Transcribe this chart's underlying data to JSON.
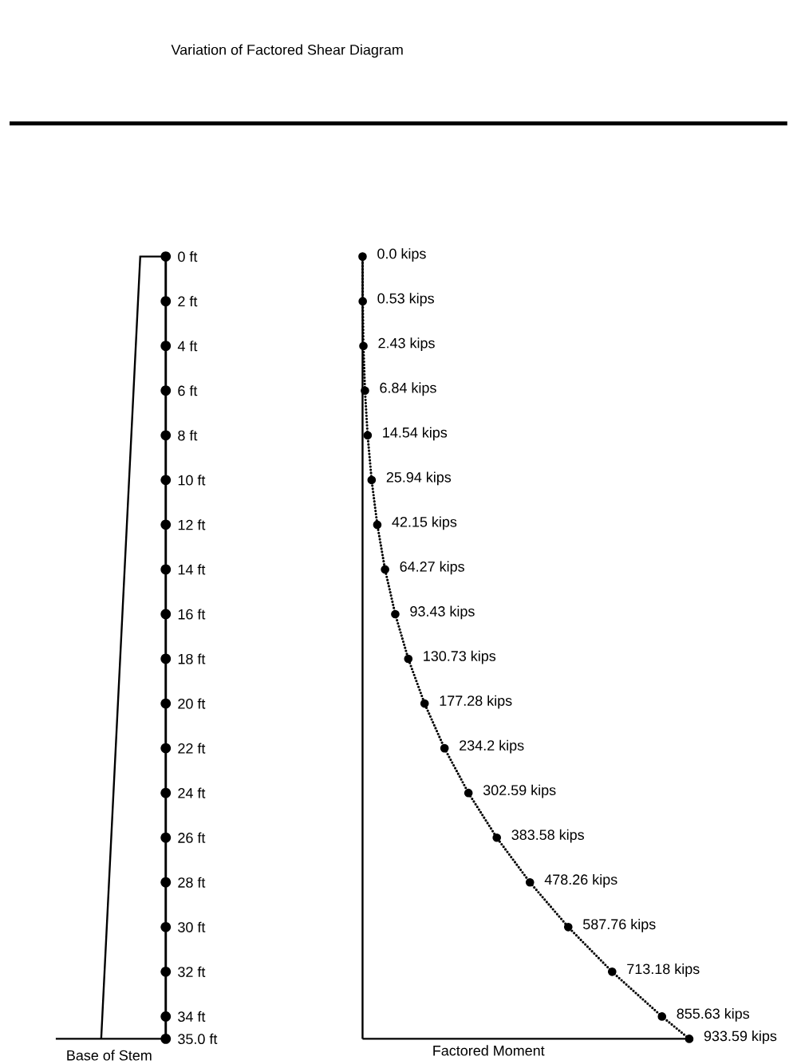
{
  "chart_data": {
    "type": "line",
    "title": "Variation of Factored Shear Diagram",
    "xlabel": "Factored Moment",
    "annotations": [
      "Base of Stem"
    ],
    "orientation": "horizontal",
    "color": "#000000",
    "marker": "circle",
    "line_style": "dotted",
    "tick_labels": "y",
    "x": [
      0,
      2,
      4,
      6,
      8,
      10,
      12,
      14,
      16,
      18,
      20,
      22,
      24,
      26,
      28,
      30,
      32,
      34,
      35
    ],
    "values": [
      0.0,
      0.53,
      2.43,
      6.84,
      14.54,
      25.94,
      42.15,
      64.27,
      93.43,
      130.73,
      177.28,
      234.2,
      302.59,
      383.58,
      478.26,
      587.76,
      713.18,
      855.63,
      933.59
    ],
    "value_labels": [
      "0.0 kips",
      "0.53 kips",
      "2.43 kips",
      "6.84 kips",
      "14.54 kips",
      "25.94 kips",
      "42.15 kips",
      "64.27 kips",
      "93.43 kips",
      "130.73 kips",
      "177.28 kips",
      "234.2 kips",
      "302.59 kips",
      "383.58 kips",
      "478.26 kips",
      "587.76 kips",
      "713.18 kips",
      "855.63 kips",
      "933.59 kips"
    ],
    "xlim": [
      0,
      933.59
    ],
    "ylim": [
      35,
      0
    ],
    "yticks": [
      {
        "value": 0,
        "label": "0 ft"
      },
      {
        "value": 2,
        "label": "2 ft"
      },
      {
        "value": 4,
        "label": "4 ft"
      },
      {
        "value": 6,
        "label": "6 ft"
      },
      {
        "value": 8,
        "label": "8 ft"
      },
      {
        "value": 10,
        "label": "10 ft"
      },
      {
        "value": 12,
        "label": "12 ft"
      },
      {
        "value": 14,
        "label": "14 ft"
      },
      {
        "value": 16,
        "label": "16 ft"
      },
      {
        "value": 18,
        "label": "18 ft"
      },
      {
        "value": 20,
        "label": "20 ft"
      },
      {
        "value": 22,
        "label": "22 ft"
      },
      {
        "value": 24,
        "label": "24 ft"
      },
      {
        "value": 26,
        "label": "26 ft"
      },
      {
        "value": 28,
        "label": "28 ft"
      },
      {
        "value": 30,
        "label": "30 ft"
      },
      {
        "value": 32,
        "label": "32 ft"
      },
      {
        "value": 34,
        "label": "34 ft"
      },
      {
        "value": 35,
        "label": "35.0 ft"
      }
    ]
  }
}
